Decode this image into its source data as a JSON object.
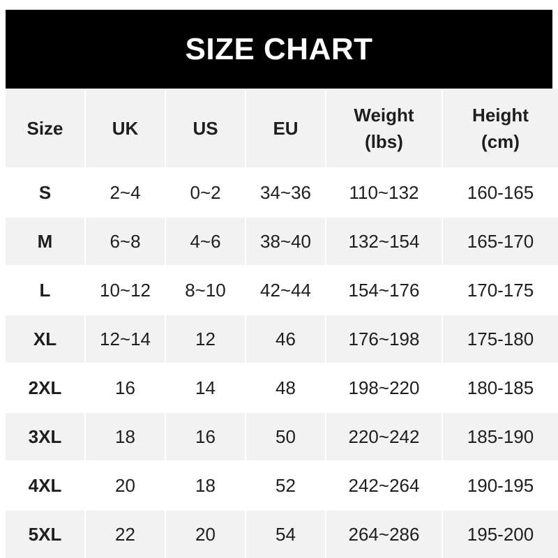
{
  "title": "SIZE CHART",
  "colors": {
    "header_bg": "#000000",
    "header_text": "#ffffff",
    "stripe": "#f2f2f2"
  },
  "headers": [
    {
      "line1": "Size",
      "line2": ""
    },
    {
      "line1": "UK",
      "line2": ""
    },
    {
      "line1": "US",
      "line2": ""
    },
    {
      "line1": "EU",
      "line2": ""
    },
    {
      "line1": "Weight",
      "line2": "(lbs)"
    },
    {
      "line1": "Height",
      "line2": "(cm)"
    }
  ],
  "rows": [
    [
      "S",
      "2~4",
      "0~2",
      "34~36",
      "110~132",
      "160-165"
    ],
    [
      "M",
      "6~8",
      "4~6",
      "38~40",
      "132~154",
      "165-170"
    ],
    [
      "L",
      "10~12",
      "8~10",
      "42~44",
      "154~176",
      "170-175"
    ],
    [
      "XL",
      "12~14",
      "12",
      "46",
      "176~198",
      "175-180"
    ],
    [
      "2XL",
      "16",
      "14",
      "48",
      "198~220",
      "180-185"
    ],
    [
      "3XL",
      "18",
      "16",
      "50",
      "220~242",
      "185-190"
    ],
    [
      "4XL",
      "20",
      "18",
      "52",
      "242~264",
      "190-195"
    ],
    [
      "5XL",
      "22",
      "20",
      "54",
      "264~286",
      "195-200"
    ]
  ]
}
